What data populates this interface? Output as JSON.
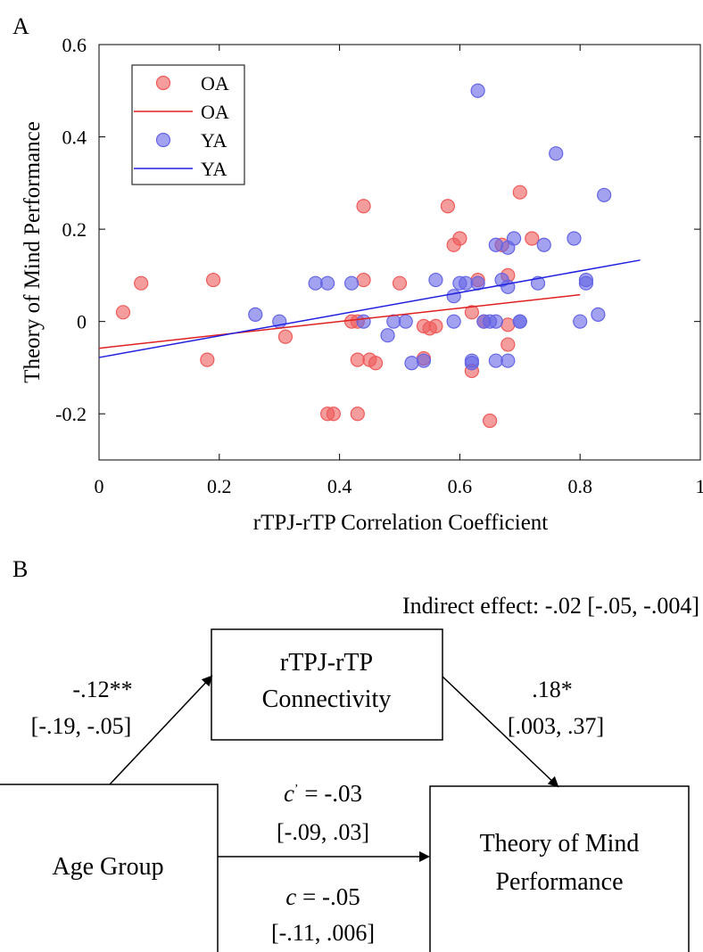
{
  "panel_a": {
    "letter": "A",
    "chart_data": {
      "type": "scatter",
      "title": "",
      "xlabel": "rTPJ-rTP Correlation Coefficient",
      "ylabel": "Theory of Mind Performance",
      "xlim": [
        0,
        1
      ],
      "ylim": [
        -0.3,
        0.6
      ],
      "xticks": [
        0,
        0.2,
        0.4,
        0.6,
        0.8,
        1
      ],
      "xtick_labels": [
        "0",
        "0.2",
        "0.4",
        "0.6",
        "0.8",
        "1"
      ],
      "yticks": [
        -0.2,
        0,
        0.2,
        0.4,
        0.6
      ],
      "ytick_labels": [
        "-0.2",
        "0",
        "0.2",
        "0.4",
        "0.6"
      ],
      "grid": false,
      "legend_position": "top-left",
      "legend": [
        {
          "label": "OA",
          "kind": "marker",
          "series": "OA"
        },
        {
          "label": "OA",
          "kind": "line",
          "series": "OA"
        },
        {
          "label": "YA",
          "kind": "marker",
          "series": "YA"
        },
        {
          "label": "YA",
          "kind": "line",
          "series": "YA"
        }
      ],
      "series": [
        {
          "name": "OA",
          "color": "#ef5a5a",
          "points": [
            [
              0.04,
              0.02
            ],
            [
              0.07,
              0.083
            ],
            [
              0.18,
              -0.083
            ],
            [
              0.19,
              0.09
            ],
            [
              0.31,
              -0.033
            ],
            [
              0.38,
              -0.2
            ],
            [
              0.39,
              -0.2
            ],
            [
              0.42,
              0
            ],
            [
              0.43,
              -0.083
            ],
            [
              0.43,
              -0.2
            ],
            [
              0.43,
              0
            ],
            [
              0.44,
              0.25
            ],
            [
              0.44,
              0.09
            ],
            [
              0.45,
              -0.083
            ],
            [
              0.46,
              -0.09
            ],
            [
              0.5,
              0.083
            ],
            [
              0.54,
              -0.01
            ],
            [
              0.54,
              -0.08
            ],
            [
              0.55,
              -0.015
            ],
            [
              0.56,
              -0.01
            ],
            [
              0.58,
              0.25
            ],
            [
              0.59,
              0.166
            ],
            [
              0.6,
              0.18
            ],
            [
              0.62,
              0.02
            ],
            [
              0.62,
              -0.107
            ],
            [
              0.63,
              0.09
            ],
            [
              0.64,
              0
            ],
            [
              0.65,
              -0.215
            ],
            [
              0.67,
              0.166
            ],
            [
              0.68,
              0.1
            ],
            [
              0.68,
              -0.05
            ],
            [
              0.68,
              -0.007
            ],
            [
              0.7,
              0.28
            ],
            [
              0.72,
              0.18
            ]
          ],
          "fit_line": {
            "x": [
              0,
              0.8
            ],
            "y": [
              -0.058,
              0.058
            ]
          }
        },
        {
          "name": "YA",
          "color": "#6464e6",
          "points": [
            [
              0.26,
              0.015
            ],
            [
              0.3,
              0
            ],
            [
              0.36,
              0.083
            ],
            [
              0.38,
              0.083
            ],
            [
              0.42,
              0.083
            ],
            [
              0.44,
              0
            ],
            [
              0.48,
              -0.03
            ],
            [
              0.49,
              0
            ],
            [
              0.51,
              0
            ],
            [
              0.52,
              -0.09
            ],
            [
              0.54,
              -0.085
            ],
            [
              0.56,
              0.09
            ],
            [
              0.59,
              0.055
            ],
            [
              0.59,
              0
            ],
            [
              0.6,
              0.083
            ],
            [
              0.61,
              0.083
            ],
            [
              0.62,
              -0.085
            ],
            [
              0.62,
              -0.09
            ],
            [
              0.63,
              0.5
            ],
            [
              0.63,
              0.083
            ],
            [
              0.64,
              0
            ],
            [
              0.65,
              0
            ],
            [
              0.66,
              0.166
            ],
            [
              0.66,
              -0.085
            ],
            [
              0.66,
              0
            ],
            [
              0.67,
              0.09
            ],
            [
              0.68,
              -0.085
            ],
            [
              0.68,
              0.075
            ],
            [
              0.68,
              0.16
            ],
            [
              0.69,
              0.18
            ],
            [
              0.7,
              0
            ],
            [
              0.7,
              0
            ],
            [
              0.73,
              0.083
            ],
            [
              0.74,
              0.166
            ],
            [
              0.76,
              0.364
            ],
            [
              0.79,
              0.18
            ],
            [
              0.8,
              0
            ],
            [
              0.81,
              0.083
            ],
            [
              0.81,
              0.09
            ],
            [
              0.83,
              0.015
            ],
            [
              0.84,
              0.274
            ]
          ],
          "fit_line": {
            "x": [
              0,
              0.9
            ],
            "y": [
              -0.078,
              0.133
            ]
          }
        }
      ]
    }
  },
  "panel_b": {
    "letter": "B",
    "indirect_effect": "Indirect effect: -.02 [-.05, -.004]",
    "mediator": {
      "line1": "rTPJ-rTP",
      "line2": "Connectivity"
    },
    "predictor": "Age Group",
    "outcome": {
      "line1": "Theory of Mind",
      "line2": "Performance"
    },
    "path_a": {
      "coef": "-.12**",
      "ci": "[-.19, -.05]"
    },
    "path_b": {
      "coef": ".18*",
      "ci": "[.003, .37]"
    },
    "path_c_prime": {
      "symbol": "c",
      "prime": "’",
      "value": " = -.03",
      "ci": "[-.09, .03]"
    },
    "path_c": {
      "symbol": "c",
      "value": " = -.05",
      "ci": "[-.11, .006]"
    }
  }
}
